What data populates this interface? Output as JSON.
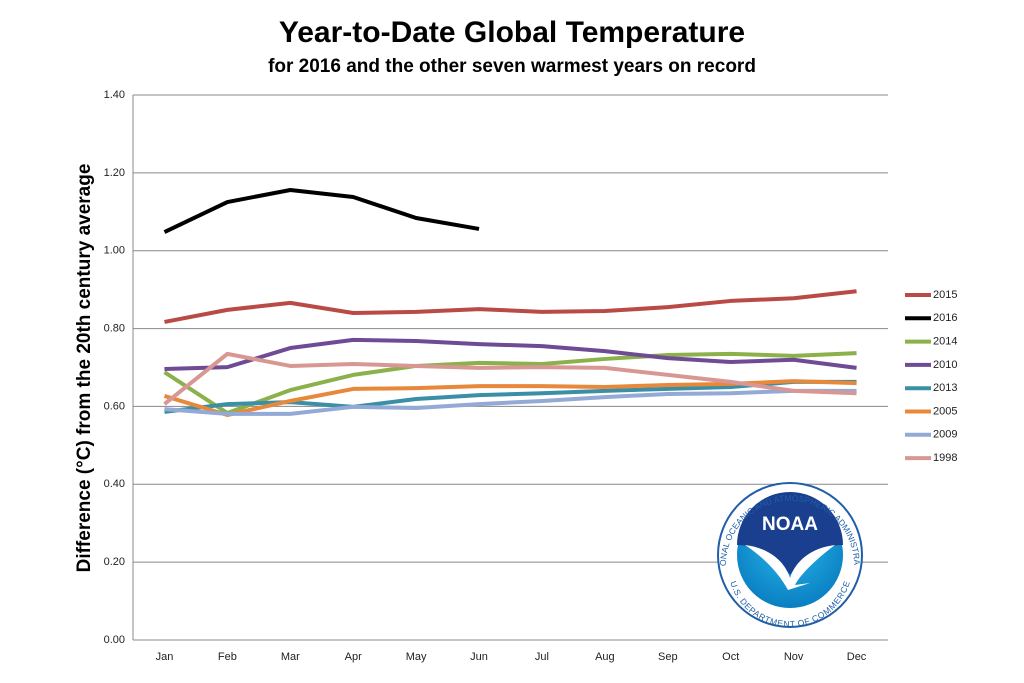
{
  "chart_data": {
    "type": "line",
    "title": "Year-to-Date Global Temperature",
    "subtitle": "for 2016 and the other seven warmest years on record",
    "y_label": "Difference (°C) from the 20th century average",
    "categories": [
      "Jan",
      "Feb",
      "Mar",
      "Apr",
      "May",
      "Jun",
      "Jul",
      "Aug",
      "Sep",
      "Oct",
      "Nov",
      "Dec"
    ],
    "ylim": [
      0,
      1.4
    ],
    "yticks": [
      {
        "value": 0,
        "label": "0.00"
      },
      {
        "value": 0.2,
        "label": "0.20"
      },
      {
        "value": 0.4,
        "label": "0.40"
      },
      {
        "value": 0.6,
        "label": "0.60"
      },
      {
        "value": 0.8,
        "label": "0.80"
      },
      {
        "value": 1.0,
        "label": "1.00"
      },
      {
        "value": 1.2,
        "label": "1.20"
      },
      {
        "value": 1.4,
        "label": "1.40"
      }
    ],
    "grid": true,
    "legend": "right",
    "series": [
      {
        "name": "2015",
        "color": "#b94a45",
        "values": [
          0.817,
          0.848,
          0.866,
          0.84,
          0.843,
          0.85,
          0.843,
          0.845,
          0.855,
          0.871,
          0.878,
          0.896
        ]
      },
      {
        "name": "2016",
        "color": "#000000",
        "values": [
          1.048,
          1.125,
          1.156,
          1.138,
          1.084,
          1.056,
          null,
          null,
          null,
          null,
          null,
          null
        ]
      },
      {
        "name": "2014",
        "color": "#8cb04a",
        "values": [
          0.688,
          0.583,
          0.642,
          0.681,
          0.704,
          0.712,
          0.709,
          0.722,
          0.732,
          0.735,
          0.73,
          0.737
        ]
      },
      {
        "name": "2010",
        "color": "#6f4a95",
        "values": [
          0.696,
          0.701,
          0.75,
          0.771,
          0.768,
          0.76,
          0.755,
          0.742,
          0.724,
          0.714,
          0.72,
          0.699
        ]
      },
      {
        "name": "2013",
        "color": "#3a8fa6",
        "values": [
          0.586,
          0.606,
          0.611,
          0.599,
          0.619,
          0.629,
          0.634,
          0.64,
          0.645,
          0.65,
          0.663,
          0.663
        ]
      },
      {
        "name": "2005",
        "color": "#e8883a",
        "values": [
          0.627,
          0.578,
          0.614,
          0.645,
          0.647,
          0.652,
          0.652,
          0.65,
          0.655,
          0.658,
          0.665,
          0.66
        ]
      },
      {
        "name": "2009",
        "color": "#93a9d6",
        "values": [
          0.593,
          0.581,
          0.581,
          0.599,
          0.596,
          0.606,
          0.614,
          0.624,
          0.632,
          0.634,
          0.64,
          0.64
        ]
      },
      {
        "name": "1998",
        "color": "#d99794",
        "values": [
          0.606,
          0.735,
          0.704,
          0.709,
          0.704,
          0.699,
          0.701,
          0.699,
          0.681,
          0.663,
          0.64,
          0.634
        ]
      }
    ]
  },
  "logo": {
    "name": "NOAA",
    "top": "NATIONAL OCEANIC AND ATMOSPHERIC ADMINISTRATION",
    "bottom": "U.S. DEPARTMENT OF COMMERCE"
  }
}
